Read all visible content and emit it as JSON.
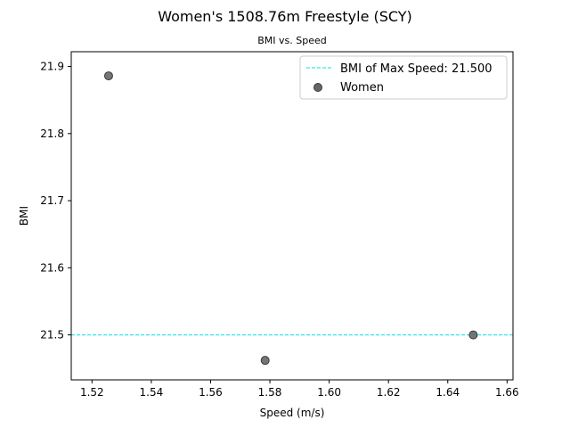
{
  "chart_data": {
    "type": "scatter",
    "title": "Women's 1508.76m Freestyle (SCY)",
    "subtitle": "BMI vs. Speed",
    "xlabel": "Speed (m/s)",
    "ylabel": "BMI",
    "xlim": [
      1.513,
      1.662
    ],
    "ylim": [
      21.433,
      21.922
    ],
    "xticks": [
      1.52,
      1.54,
      1.56,
      1.58,
      1.6,
      1.62,
      1.64,
      1.66
    ],
    "xtick_labels": [
      "1.52",
      "1.54",
      "1.56",
      "1.58",
      "1.60",
      "1.62",
      "1.64",
      "1.66"
    ],
    "yticks": [
      21.5,
      21.6,
      21.7,
      21.8,
      21.9
    ],
    "ytick_labels": [
      "21.5",
      "21.6",
      "21.7",
      "21.8",
      "21.9"
    ],
    "grid": false,
    "legend_position": "top-right",
    "series": [
      {
        "name": "Women",
        "color": "#666666",
        "points": [
          {
            "x": 1.5256,
            "y": 21.886
          },
          {
            "x": 1.5784,
            "y": 21.462
          },
          {
            "x": 1.6486,
            "y": 21.5
          }
        ]
      }
    ],
    "reference_lines": [
      {
        "label": "BMI of Max Speed: 21.500",
        "y": 21.5,
        "color": "#00e5e5",
        "style": "dashed"
      }
    ]
  }
}
